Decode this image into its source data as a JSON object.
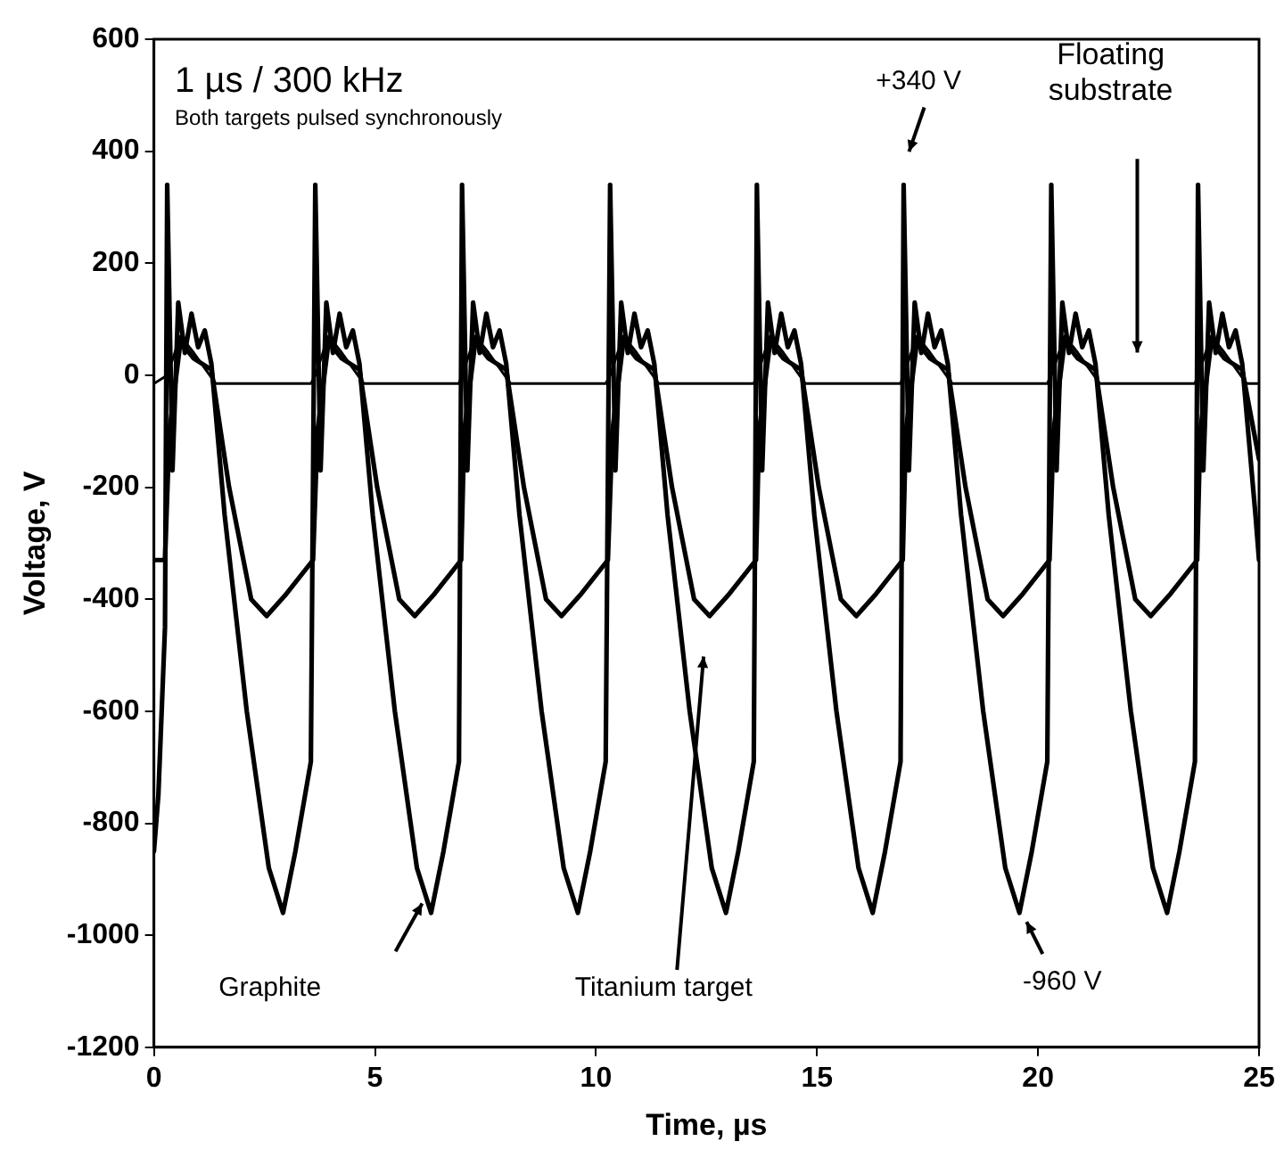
{
  "chart_data": {
    "type": "line",
    "xlabel": "Time, µs",
    "ylabel": "Voltage, V",
    "xlim": [
      0,
      25
    ],
    "xticks": [
      0,
      5,
      10,
      15,
      20,
      25
    ],
    "ylim": [
      -1200,
      600
    ],
    "yticks": [
      -1200,
      -1000,
      -800,
      -600,
      -400,
      -200,
      0,
      200,
      400,
      600
    ],
    "grid": false,
    "legend": false,
    "marker": "none",
    "line_style": "solid",
    "series": [
      {
        "color": "#000000",
        "x": [
          0,
          0.1,
          0.25,
          0.3,
          0.42,
          0.55,
          0.7,
          0.85,
          1.0,
          1.15,
          1.3,
          1.6,
          2.1,
          2.6,
          2.92,
          3.2,
          3.55,
          3.65,
          3.77,
          3.9,
          4.05,
          4.2,
          4.35,
          4.5,
          4.65,
          4.95,
          5.45,
          5.95,
          6.27,
          6.55,
          6.9,
          6.97,
          7.09,
          7.22,
          7.37,
          7.52,
          7.67,
          7.82,
          7.97,
          8.27,
          8.77,
          9.27,
          9.59,
          9.87,
          10.22,
          10.32,
          10.44,
          10.57,
          10.72,
          10.87,
          11.02,
          11.17,
          11.32,
          11.62,
          12.12,
          12.62,
          12.94,
          13.22,
          13.57,
          13.64,
          13.76,
          13.89,
          14.04,
          14.19,
          14.34,
          14.49,
          14.64,
          14.94,
          15.44,
          15.94,
          16.26,
          16.54,
          16.89,
          16.96,
          17.08,
          17.21,
          17.36,
          17.51,
          17.66,
          17.81,
          17.96,
          18.26,
          18.76,
          19.26,
          19.58,
          19.86,
          20.21,
          20.3,
          20.42,
          20.55,
          20.7,
          20.85,
          21.0,
          21.15,
          21.3,
          21.6,
          22.1,
          22.6,
          22.92,
          23.2,
          23.55,
          23.62,
          23.74,
          23.87,
          24.02,
          24.17,
          24.32,
          24.47,
          24.62,
          24.92,
          25
        ],
        "values": [
          -850,
          -750,
          -450,
          340,
          -170,
          130,
          40,
          110,
          50,
          80,
          20,
          -250,
          -600,
          -880,
          -960,
          -850,
          -690,
          340,
          -170,
          130,
          40,
          110,
          50,
          80,
          20,
          -250,
          -600,
          -880,
          -960,
          -850,
          -690,
          340,
          -170,
          130,
          40,
          110,
          50,
          80,
          20,
          -250,
          -600,
          -880,
          -960,
          -850,
          -690,
          340,
          -170,
          130,
          40,
          110,
          50,
          80,
          20,
          -250,
          -600,
          -880,
          -960,
          -850,
          -690,
          340,
          -170,
          130,
          40,
          110,
          50,
          80,
          20,
          -250,
          -600,
          -880,
          -960,
          -850,
          -690,
          340,
          -170,
          130,
          40,
          110,
          50,
          80,
          20,
          -250,
          -600,
          -880,
          -960,
          -850,
          -690,
          340,
          -170,
          130,
          40,
          110,
          50,
          80,
          20,
          -250,
          -600,
          -880,
          -960,
          -850,
          -690,
          340,
          -170,
          130,
          40,
          110,
          50,
          80,
          20,
          -250,
          -330
        ]
      },
      {
        "color": "#000000",
        "x": [
          0,
          0.25,
          0.35,
          0.6,
          0.9,
          1.3,
          1.7,
          2.2,
          2.55,
          3.0,
          3.6,
          3.7,
          3.95,
          4.25,
          4.65,
          5.05,
          5.55,
          5.9,
          6.35,
          6.95,
          7.02,
          7.27,
          7.57,
          7.97,
          8.37,
          8.87,
          9.22,
          9.67,
          10.27,
          10.37,
          10.62,
          10.92,
          11.32,
          11.72,
          12.22,
          12.57,
          13.02,
          13.62,
          13.69,
          13.94,
          14.24,
          14.64,
          15.04,
          15.54,
          15.89,
          16.34,
          16.94,
          17.01,
          17.26,
          17.56,
          17.96,
          18.36,
          18.86,
          19.21,
          19.66,
          20.26,
          20.35,
          20.6,
          20.9,
          21.3,
          21.7,
          22.2,
          22.55,
          23.0,
          23.6,
          23.67,
          23.92,
          24.22,
          24.62,
          25
        ],
        "values": [
          -330,
          -330,
          -100,
          60,
          30,
          10,
          -200,
          -400,
          -430,
          -390,
          -330,
          -100,
          60,
          30,
          10,
          -200,
          -400,
          -430,
          -390,
          -330,
          -100,
          60,
          30,
          10,
          -200,
          -400,
          -430,
          -390,
          -330,
          -100,
          60,
          30,
          10,
          -200,
          -400,
          -430,
          -390,
          -330,
          -100,
          60,
          30,
          10,
          -200,
          -400,
          -430,
          -390,
          -330,
          -100,
          60,
          30,
          10,
          -200,
          -400,
          -430,
          -390,
          -330,
          -100,
          60,
          30,
          10,
          -200,
          -400,
          -430,
          -390,
          -330,
          -100,
          60,
          30,
          10,
          -150
        ]
      },
      {
        "color": "#000000",
        "x": [
          0,
          0.3,
          0.6,
          0.9,
          1.4,
          3.55,
          3.65,
          3.95,
          4.25,
          4.75,
          6.9,
          6.97,
          7.27,
          7.57,
          8.07,
          10.22,
          10.32,
          10.62,
          10.92,
          11.42,
          13.57,
          13.64,
          13.94,
          14.24,
          14.74,
          16.89,
          16.96,
          17.26,
          17.56,
          18.06,
          20.21,
          20.3,
          20.6,
          20.9,
          21.4,
          23.55,
          23.62,
          23.92,
          24.22,
          24.72,
          25
        ],
        "values": [
          -15,
          0,
          70,
          40,
          -15,
          -15,
          0,
          70,
          40,
          -15,
          -15,
          0,
          70,
          40,
          -15,
          -15,
          0,
          70,
          40,
          -15,
          -15,
          0,
          70,
          40,
          -15,
          -15,
          0,
          70,
          40,
          -15,
          -15,
          0,
          70,
          40,
          -15,
          -15,
          0,
          70,
          40,
          -15,
          -15
        ]
      }
    ],
    "annotations": [
      "1 µs / 300 kHz",
      "Both targets pulsed synchronously",
      "+340 V",
      "Floating substrate",
      "Graphite",
      "Titanium target",
      {
        "text": "-960 V",
        "x": 19.58,
        "y": -960
      }
    ]
  }
}
